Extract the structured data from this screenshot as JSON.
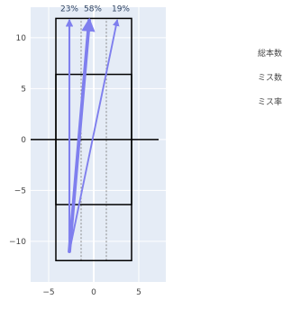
{
  "chart_data": {
    "type": "diagram-plot",
    "xlim": [
      -7,
      8
    ],
    "ylim": [
      -14,
      13
    ],
    "xticks": [
      -5,
      0,
      5
    ],
    "yticks": [
      10,
      5,
      0,
      -5,
      -10
    ],
    "grid": true,
    "origin": [
      -2.7,
      -11.0
    ],
    "arrows": [
      {
        "label": "23%",
        "tip": [
          -2.7,
          11.7
        ],
        "weight": 23
      },
      {
        "label": "58%",
        "tip": [
          -0.5,
          11.7
        ],
        "weight": 58
      },
      {
        "label": "19%",
        "tip": [
          2.6,
          11.7
        ],
        "weight": 19
      }
    ],
    "rectangles": [
      {
        "x0": -4.2,
        "x1": 4.2,
        "y0": -11.9,
        "y1": 11.9
      },
      {
        "x0": -4.2,
        "x1": 4.2,
        "y0": -6.4,
        "y1": 6.4
      },
      {
        "x0": 0.0,
        "x1": 0.0,
        "y0": -6.4,
        "y1": 6.4
      }
    ],
    "horizontal_line": {
      "x0": -7.0,
      "x1": 7.2,
      "y": 0
    },
    "dotted_lines": [
      {
        "x": -1.4,
        "y0": -11.9,
        "y1": 11.9
      },
      {
        "x": 1.4,
        "y0": -11.9,
        "y1": 11.9
      }
    ],
    "legend": {
      "placement": "right",
      "items": [
        "総本数",
        "ミス数",
        "ミス率"
      ]
    }
  }
}
